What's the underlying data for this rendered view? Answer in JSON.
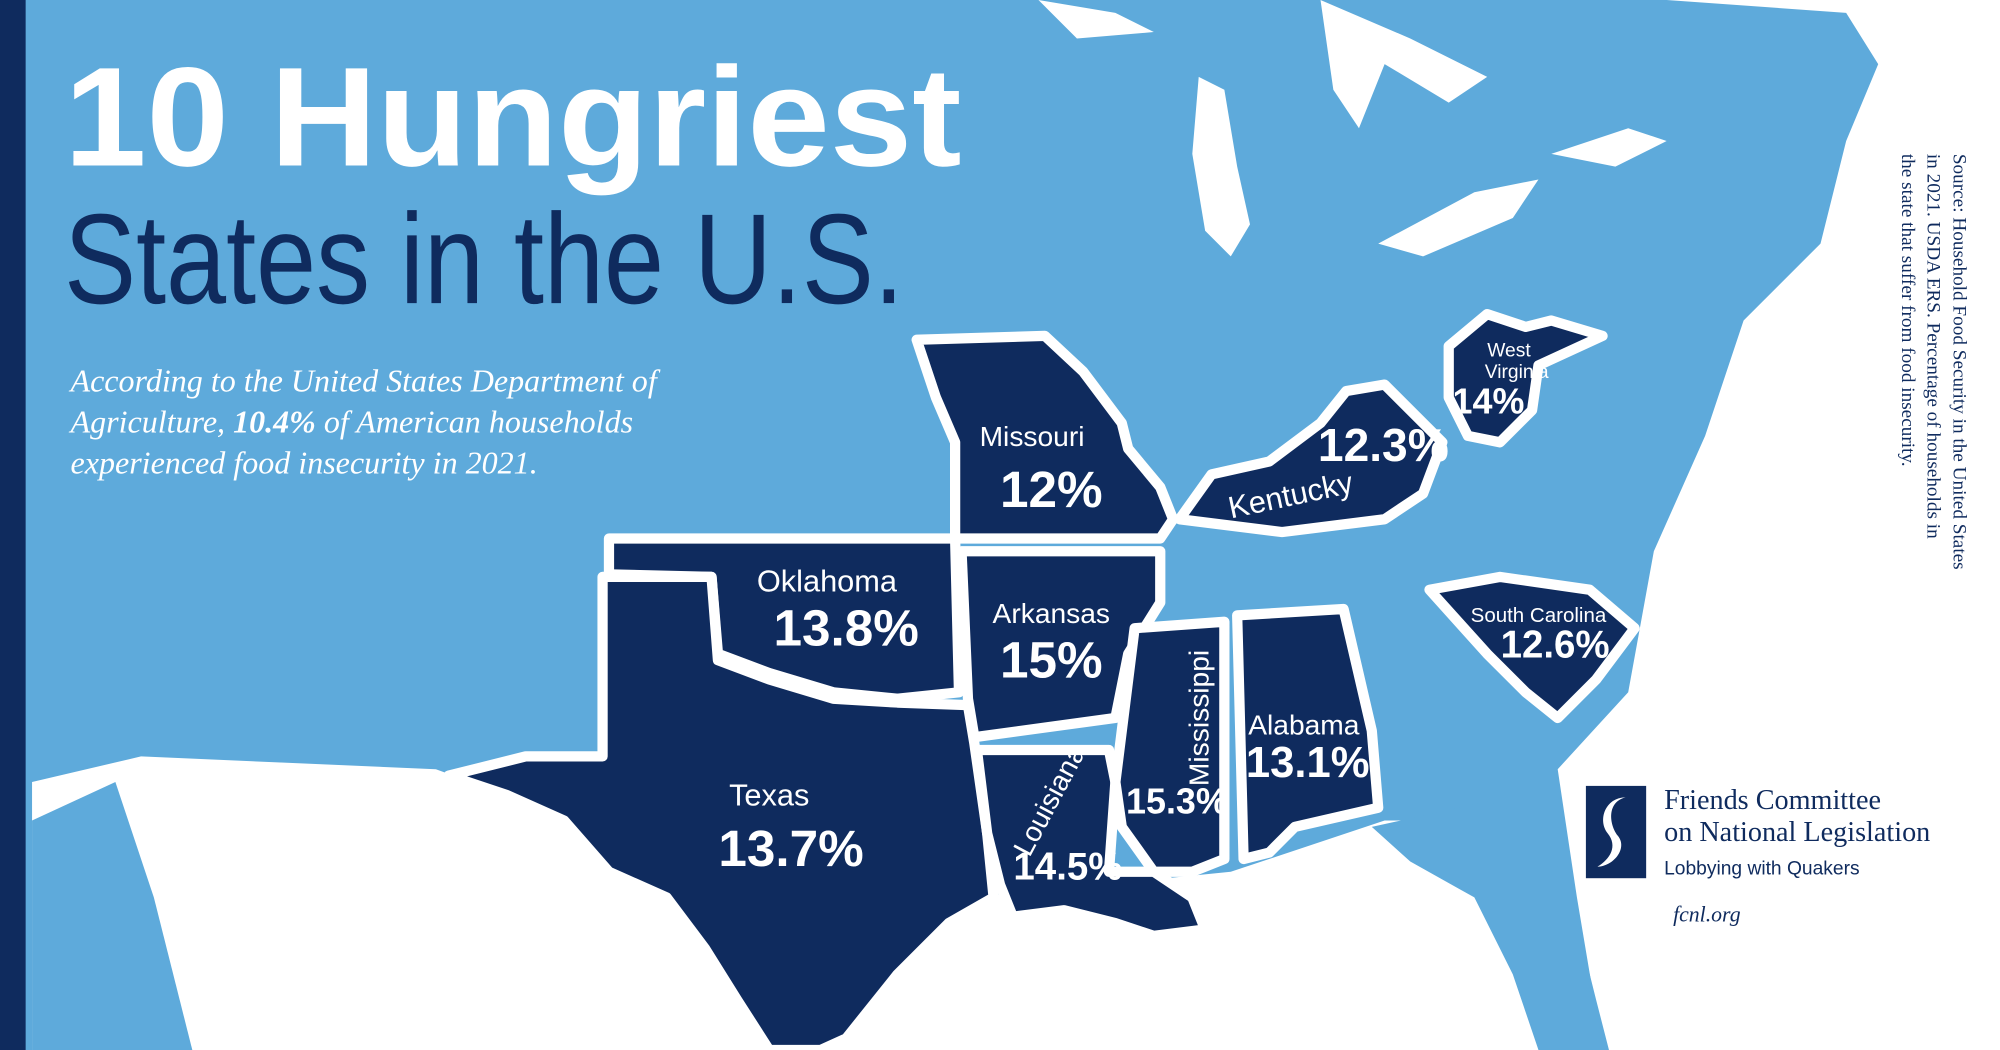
{
  "header": {
    "title_line1": "10 Hungriest",
    "title_line2": "States in the U.S.",
    "intro": [
      [
        "According to the United States Department of"
      ],
      [
        "Agriculture, ",
        "10.4%",
        " of American households"
      ],
      [
        "experienced food insecurity in 2021."
      ]
    ]
  },
  "states": [
    {
      "name": [
        "Missouri"
      ],
      "value": "12%"
    },
    {
      "name": [
        "Oklahoma"
      ],
      "value": "13.8%"
    },
    {
      "name": [
        "Arkansas"
      ],
      "value": "15%"
    },
    {
      "name": [
        "Texas"
      ],
      "value": "13.7%"
    },
    {
      "name": [
        "Louisiana"
      ],
      "value": "14.5%"
    },
    {
      "name": [
        "Mississippi"
      ],
      "value": "15.3%"
    },
    {
      "name": [
        "Alabama"
      ],
      "value": "13.1%"
    },
    {
      "name": [
        "Kentucky"
      ],
      "value": "12.3%"
    },
    {
      "name": [
        "West",
        "Virginia"
      ],
      "value": "14%"
    },
    {
      "name": [
        "South Carolina"
      ],
      "value": "12.6%"
    }
  ],
  "source": [
    "Source: Household Food Security in the United States",
    "in 2021. USDA ERS. Percentage of households in",
    "the state that suffer from food insecurity."
  ],
  "logo": {
    "line1": "Friends Committee",
    "line2": "on National Legislation",
    "tagline": "Lobbying with Quakers",
    "url": "fcnl.org"
  }
}
